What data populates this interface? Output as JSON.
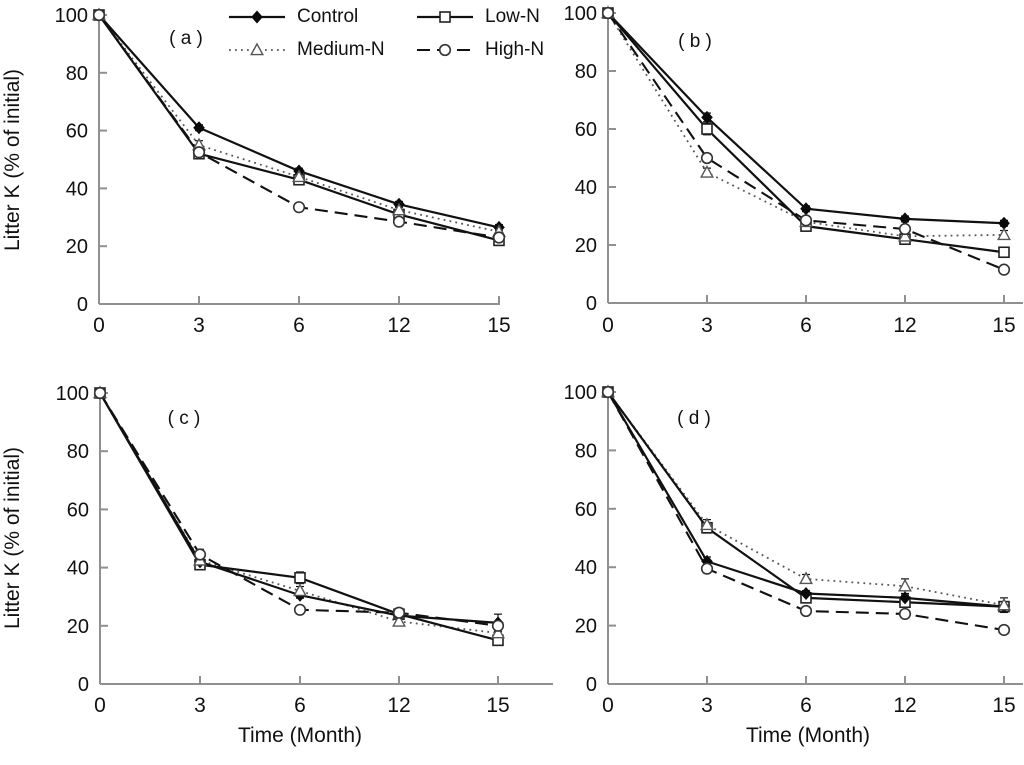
{
  "figure": {
    "background": "#ffffff",
    "ink_color": "#111111",
    "axis_color": "#909090"
  },
  "axes": {
    "y_label": "Litter K (% of initial)",
    "x_label": "Time (Month)",
    "x_ticks": [
      "0",
      "3",
      "6",
      "12",
      "15"
    ],
    "y_ticks": [
      "0",
      "20",
      "40",
      "60",
      "80",
      "100"
    ],
    "ylim": [
      0,
      100
    ]
  },
  "legend": {
    "position": "top-center",
    "items": [
      {
        "label": "Control",
        "marker": "diamond-filled",
        "line": "solid"
      },
      {
        "label": "Low-N",
        "marker": "square-open",
        "line": "solid"
      },
      {
        "label": "Medium-N",
        "marker": "triangle-open",
        "line": "dotted"
      },
      {
        "label": "High-N",
        "marker": "circle-open",
        "line": "dashed"
      }
    ]
  },
  "chart_data": [
    {
      "type": "line",
      "panel_label": "( a )",
      "x": [
        0,
        3,
        6,
        12,
        15
      ],
      "xlabel": "Time (Month)",
      "ylabel": "Litter K (% of initial)",
      "ylim": [
        0,
        100
      ],
      "series": [
        {
          "name": "Control",
          "values": [
            100,
            61,
            46,
            34.5,
            26.5
          ],
          "errors": [
            0,
            1,
            1,
            1,
            1
          ]
        },
        {
          "name": "Low-N",
          "values": [
            100,
            52,
            43,
            31,
            22
          ],
          "errors": [
            0,
            1.2,
            1,
            1,
            1
          ]
        },
        {
          "name": "Medium-N",
          "values": [
            100,
            55,
            44,
            32.5,
            25
          ],
          "errors": [
            0,
            1.5,
            1,
            1,
            1
          ]
        },
        {
          "name": "High-N",
          "values": [
            100,
            52.5,
            33.5,
            28.5,
            23
          ],
          "errors": [
            0,
            1.2,
            1,
            1,
            1
          ]
        }
      ]
    },
    {
      "type": "line",
      "panel_label": "( b )",
      "x": [
        0,
        3,
        6,
        12,
        15
      ],
      "xlabel": "Time (Month)",
      "ylabel": "Litter K (% of initial)",
      "ylim": [
        0,
        100
      ],
      "series": [
        {
          "name": "Control",
          "values": [
            100,
            64,
            32.5,
            29,
            27.5
          ],
          "errors": [
            0,
            1.5,
            1,
            1,
            1
          ]
        },
        {
          "name": "Low-N",
          "values": [
            100,
            60,
            26.5,
            22,
            17.5
          ],
          "errors": [
            0,
            2,
            1,
            1,
            1
          ]
        },
        {
          "name": "Medium-N",
          "values": [
            100,
            45,
            28,
            23,
            23.5
          ],
          "errors": [
            0,
            1.5,
            1,
            1,
            1.5
          ]
        },
        {
          "name": "High-N",
          "values": [
            100,
            50,
            28.5,
            25.5,
            11.5
          ],
          "errors": [
            0,
            1.5,
            1,
            1,
            1
          ]
        }
      ]
    },
    {
      "type": "line",
      "panel_label": "( c )",
      "x": [
        0,
        3,
        6,
        12,
        15
      ],
      "xlabel": "Time (Month)",
      "ylabel": "Litter K (% of initial)",
      "ylim": [
        0,
        100
      ],
      "series": [
        {
          "name": "Control",
          "values": [
            100,
            42,
            30.5,
            23.5,
            21
          ],
          "errors": [
            0,
            1.2,
            1,
            1,
            3
          ]
        },
        {
          "name": "Low-N",
          "values": [
            100,
            41,
            36.5,
            24,
            15
          ],
          "errors": [
            0,
            1.5,
            2,
            1,
            1.5
          ]
        },
        {
          "name": "Medium-N",
          "values": [
            100,
            42.5,
            32,
            21.5,
            17.5
          ],
          "errors": [
            0,
            2,
            1.5,
            1,
            1
          ]
        },
        {
          "name": "High-N",
          "values": [
            100,
            44.5,
            25.5,
            24.5,
            20
          ],
          "errors": [
            0,
            1.8,
            1,
            1.5,
            1
          ]
        }
      ]
    },
    {
      "type": "line",
      "panel_label": "( d )",
      "x": [
        0,
        3,
        6,
        12,
        15
      ],
      "xlabel": "Time (Month)",
      "ylabel": "Litter K (% of initial)",
      "ylim": [
        0,
        100
      ],
      "series": [
        {
          "name": "Control",
          "values": [
            100,
            42,
            31,
            29.5,
            26.5
          ],
          "errors": [
            0,
            1.5,
            1,
            1,
            1.5
          ]
        },
        {
          "name": "Low-N",
          "values": [
            100,
            53.5,
            29.5,
            28,
            26.5
          ],
          "errors": [
            0,
            1.8,
            1,
            1.5,
            1.5
          ]
        },
        {
          "name": "Medium-N",
          "values": [
            100,
            54.5,
            36,
            33.5,
            27
          ],
          "errors": [
            0,
            1.8,
            1.5,
            2.5,
            2.5
          ]
        },
        {
          "name": "High-N",
          "values": [
            100,
            39.5,
            25,
            24,
            18.5
          ],
          "errors": [
            0,
            1.5,
            1,
            1,
            1
          ]
        }
      ]
    }
  ]
}
